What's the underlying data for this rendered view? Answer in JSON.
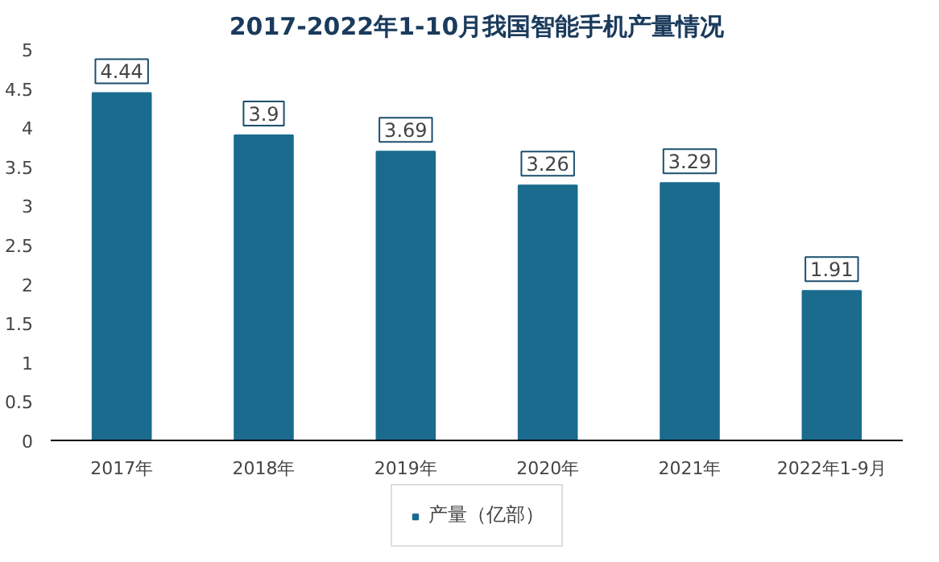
{
  "chart_data": {
    "type": "bar",
    "title": "2017-2022年1-10月我国智能手机产量情况",
    "categories": [
      "2017年",
      "2018年",
      "2019年",
      "2020年",
      "2021年",
      "2022年1-9月"
    ],
    "series": [
      {
        "name": "产量（亿部）",
        "color": "#1b6b8f",
        "values": [
          4.44,
          3.9,
          3.69,
          3.26,
          3.29,
          1.91
        ]
      }
    ],
    "ylim": [
      0,
      5
    ],
    "yticks": [
      0,
      0.5,
      1,
      1.5,
      2,
      2.5,
      3,
      3.5,
      4,
      4.5,
      5
    ],
    "grid": false,
    "legend": "bottom",
    "data_labels": true
  }
}
